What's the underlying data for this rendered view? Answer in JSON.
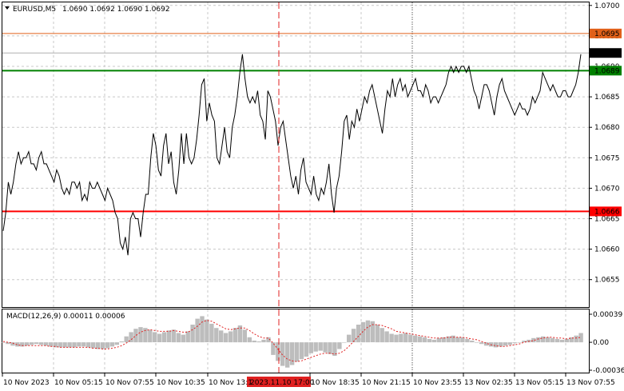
{
  "chart_data": [
    {
      "type": "line",
      "header": {
        "symbol": "EURUSD,M5",
        "ohlc": "1.0690 1.0692 1.0690 1.0692"
      },
      "ylim": [
        1.065,
        1.07
      ],
      "y_ticks": [
        "1.0700",
        "1.0695",
        "1.0690",
        "1.0685",
        "1.0680",
        "1.0675",
        "1.0670",
        "1.0665",
        "1.0660",
        "1.0655"
      ],
      "x_ticks": [
        "10 Nov 2023",
        "10 Nov 05:15",
        "10 Nov 07:55",
        "10 Nov 10:35",
        "10 Nov 13:1",
        "10 Nov 18:35",
        "10 Nov 21:15",
        "10 Nov 23:55",
        "13 Nov 02:35",
        "13 Nov 05:15",
        "13 Nov 07:55"
      ],
      "crosshair_time": "2023.11.10 17:00",
      "levels": [
        {
          "value": 1.06954,
          "label": "1.0695",
          "color": "#e0601a"
        },
        {
          "value": 1.06893,
          "label": "1.0689",
          "color": "#008000"
        },
        {
          "value": 1.06662,
          "label": "1.0666",
          "color": "#ff0000"
        },
        {
          "value": 1.06922,
          "label": "1.0692",
          "color": "#000000"
        }
      ],
      "price_series": [
        1.0663,
        1.0666,
        1.0671,
        1.0669,
        1.0671,
        1.0674,
        1.0676,
        1.0674,
        1.0675,
        1.0675,
        1.0676,
        1.0674,
        1.0674,
        1.0673,
        1.0675,
        1.0676,
        1.0674,
        1.0674,
        1.0673,
        1.0672,
        1.0671,
        1.0673,
        1.0672,
        1.067,
        1.0669,
        1.067,
        1.0669,
        1.0671,
        1.0671,
        1.067,
        1.0671,
        1.0668,
        1.0669,
        1.0668,
        1.0671,
        1.067,
        1.067,
        1.0671,
        1.067,
        1.0669,
        1.0668,
        1.067,
        1.0669,
        1.0668,
        1.0666,
        1.0665,
        1.0661,
        1.066,
        1.0662,
        1.0659,
        1.0665,
        1.0666,
        1.0665,
        1.0665,
        1.0662,
        1.0666,
        1.0669,
        1.0669,
        1.0675,
        1.0679,
        1.0677,
        1.0673,
        1.0672,
        1.0677,
        1.0679,
        1.0674,
        1.0676,
        1.0671,
        1.0669,
        1.0673,
        1.0679,
        1.0674,
        1.0679,
        1.0675,
        1.0674,
        1.0675,
        1.0678,
        1.0682,
        1.0687,
        1.0688,
        1.0681,
        1.0684,
        1.0682,
        1.0681,
        1.0675,
        1.0674,
        1.0677,
        1.068,
        1.0676,
        1.0675,
        1.068,
        1.0682,
        1.0685,
        1.0689,
        1.0692,
        1.0688,
        1.0685,
        1.0684,
        1.0685,
        1.0684,
        1.0686,
        1.0682,
        1.0681,
        1.0678,
        1.0686,
        1.0685,
        1.0683,
        1.0681,
        1.0677,
        1.068,
        1.0681,
        1.0678,
        1.0675,
        1.0672,
        1.067,
        1.0672,
        1.0669,
        1.0673,
        1.0675,
        1.0671,
        1.067,
        1.0669,
        1.0672,
        1.0669,
        1.0668,
        1.067,
        1.0669,
        1.0671,
        1.0674,
        1.0669,
        1.0666,
        1.067,
        1.0672,
        1.0676,
        1.0681,
        1.0682,
        1.0678,
        1.0681,
        1.068,
        1.0683,
        1.0681,
        1.0683,
        1.0685,
        1.0684,
        1.0686,
        1.0687,
        1.0685,
        1.0683,
        1.0681,
        1.0679,
        1.0683,
        1.0686,
        1.0685,
        1.0688,
        1.0685,
        1.0687,
        1.0688,
        1.0686,
        1.0687,
        1.0685,
        1.0686,
        1.0687,
        1.0688,
        1.0686,
        1.0686,
        1.0685,
        1.0687,
        1.0686,
        1.0684,
        1.0685,
        1.0685,
        1.0684,
        1.0685,
        1.0686,
        1.0687,
        1.0689,
        1.069,
        1.0689,
        1.069,
        1.0689,
        1.069,
        1.069,
        1.0689,
        1.069,
        1.0688,
        1.0686,
        1.0685,
        1.0683,
        1.0685,
        1.0687,
        1.0687,
        1.0686,
        1.0684,
        1.0682,
        1.0685,
        1.0687,
        1.0688,
        1.0686,
        1.0685,
        1.0684,
        1.0683,
        1.0682,
        1.0683,
        1.0684,
        1.0683,
        1.0683,
        1.0682,
        1.0683,
        1.0685,
        1.0684,
        1.0685,
        1.0686,
        1.0689,
        1.0688,
        1.0687,
        1.0686,
        1.0687,
        1.0686,
        1.0685,
        1.0685,
        1.0686,
        1.0686,
        1.0685,
        1.0685,
        1.0686,
        1.0687,
        1.0689,
        1.0692
      ]
    },
    {
      "type": "bar",
      "title": "MACD(12,26,9) 0.00011 0.00006",
      "ylim": [
        -0.00036,
        0.00039
      ],
      "y_ticks": [
        "0.00039",
        "0.00",
        "-0.00036"
      ],
      "series": [
        {
          "name": "MACD",
          "values": [
            0.0,
            -2e-05,
            -4e-05,
            -5e-05,
            -5e-05,
            -4e-05,
            -3e-05,
            -2e-05,
            -3e-05,
            -4e-05,
            -5e-05,
            -6e-05,
            -6e-05,
            -6e-05,
            -6e-05,
            -6e-05,
            -5e-05,
            -5e-05,
            -6e-05,
            -7e-05,
            -8e-05,
            -8e-05,
            -7e-05,
            -5e-05,
            -3e-05,
            1e-05,
            7e-05,
            0.00012,
            0.00016,
            0.00018,
            0.00017,
            0.00015,
            0.00012,
            0.0001,
            0.00012,
            0.00014,
            0.00015,
            0.00011,
            9e-05,
            0.00013,
            0.00021,
            0.00028,
            0.00031,
            0.00027,
            0.00022,
            0.00017,
            0.00014,
            0.00011,
            0.00013,
            0.00017,
            0.0002,
            0.00015,
            6e-05,
            2e-05,
            1e-05,
            3e-05,
            6e-05,
            -0.00015,
            -0.00022,
            -0.00028,
            -0.0003,
            -0.00027,
            -0.00023,
            -0.0002,
            -0.00017,
            -0.00013,
            -0.00011,
            -0.0001,
            -0.00012,
            -0.00014,
            -0.00016,
            -8e-05,
            0.0,
            9e-05,
            0.00016,
            0.00021,
            0.00024,
            0.00026,
            0.00025,
            0.00021,
            0.00017,
            0.00013,
            0.0001,
            9e-05,
            0.0001,
            0.00011,
            9e-05,
            8e-05,
            7e-05,
            6e-05,
            4e-05,
            3e-05,
            5e-05,
            6e-05,
            7e-05,
            8e-05,
            6e-05,
            6e-05,
            4e-05,
            2e-05,
            0.0,
            -2e-05,
            -4e-05,
            -5e-05,
            -6e-05,
            -5e-05,
            -4e-05,
            -3e-05,
            -1e-05,
            0.0,
            2e-05,
            3e-05,
            5e-05,
            6e-05,
            7e-05,
            6e-05,
            5e-05,
            4e-05,
            3e-05,
            4e-05,
            6e-05,
            8e-05,
            0.00011
          ]
        },
        {
          "name": "Signal",
          "values": [
            1e-05,
            0.0,
            -1e-05,
            -3e-05,
            -4e-05,
            -4e-05,
            -4e-05,
            -4e-05,
            -4e-05,
            -4e-05,
            -5e-05,
            -5e-05,
            -6e-05,
            -6e-05,
            -6e-05,
            -6e-05,
            -6e-05,
            -6e-05,
            -6e-05,
            -7e-05,
            -7e-05,
            -8e-05,
            -8e-05,
            -7e-05,
            -6e-05,
            -4e-05,
            -1e-05,
            3e-05,
            8e-05,
            0.00012,
            0.00014,
            0.00015,
            0.00014,
            0.00013,
            0.00013,
            0.00013,
            0.00014,
            0.00013,
            0.00012,
            0.00012,
            0.00015,
            0.00019,
            0.00024,
            0.00026,
            0.00025,
            0.00022,
            0.00019,
            0.00016,
            0.00015,
            0.00016,
            0.00017,
            0.00017,
            0.00014,
            0.0001,
            7e-05,
            5e-05,
            5e-05,
            -1e-05,
            -8e-05,
            -0.00015,
            -0.0002,
            -0.00022,
            -0.00023,
            -0.00022,
            -0.0002,
            -0.00018,
            -0.00016,
            -0.00014,
            -0.00013,
            -0.00013,
            -0.00014,
            -0.00013,
            -0.0001,
            -5e-05,
            1e-05,
            7e-05,
            0.00013,
            0.00018,
            0.00021,
            0.00021,
            0.0002,
            0.00018,
            0.00016,
            0.00013,
            0.00012,
            0.00011,
            0.0001,
            9e-05,
            8e-05,
            7e-05,
            6e-05,
            5e-05,
            5e-05,
            5e-05,
            6e-05,
            6e-05,
            6e-05,
            6e-05,
            5e-05,
            4e-05,
            3e-05,
            1e-05,
            -1e-05,
            -3e-05,
            -4e-05,
            -5e-05,
            -5e-05,
            -4e-05,
            -3e-05,
            -2e-05,
            0.0,
            1e-05,
            2e-05,
            4e-05,
            5e-05,
            6e-05,
            6e-05,
            5e-05,
            5e-05,
            4e-05,
            5e-05,
            5e-05,
            6e-05
          ]
        }
      ]
    }
  ]
}
